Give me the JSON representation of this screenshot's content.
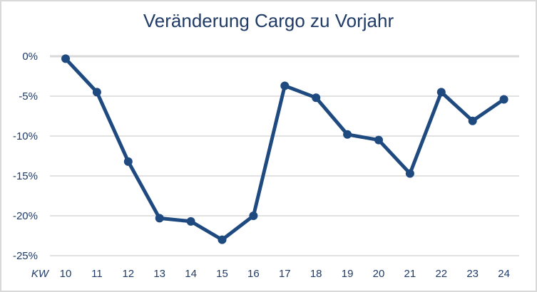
{
  "chart_data": {
    "type": "line",
    "title": "Veränderung Cargo zu Vorjahr",
    "xlabel": "KW",
    "ylabel": "",
    "categories": [
      "10",
      "11",
      "12",
      "13",
      "14",
      "15",
      "16",
      "17",
      "18",
      "19",
      "20",
      "21",
      "22",
      "23",
      "24"
    ],
    "series": [
      {
        "name": "Veränderung Cargo zu Vorjahr",
        "values": [
          -0.3,
          -4.5,
          -13.2,
          -20.3,
          -20.7,
          -23.0,
          -20.0,
          -3.7,
          -5.2,
          -9.8,
          -10.5,
          -14.7,
          -4.5,
          -8.1,
          -5.4
        ]
      }
    ],
    "ylim": [
      -25,
      0
    ],
    "yticks": [
      "0%",
      "-5%",
      "-10%",
      "-15%",
      "-20%",
      "-25%"
    ],
    "ytick_values": [
      0,
      -5,
      -10,
      -15,
      -20,
      -25
    ],
    "grid": true,
    "legend": "none",
    "line_color": "#1f4a80",
    "marker": "circle"
  },
  "colors": {
    "line": "#1f4a80",
    "grid": "#d9d9d9",
    "text": "#1f3b66",
    "border": "#d9d9d9"
  }
}
